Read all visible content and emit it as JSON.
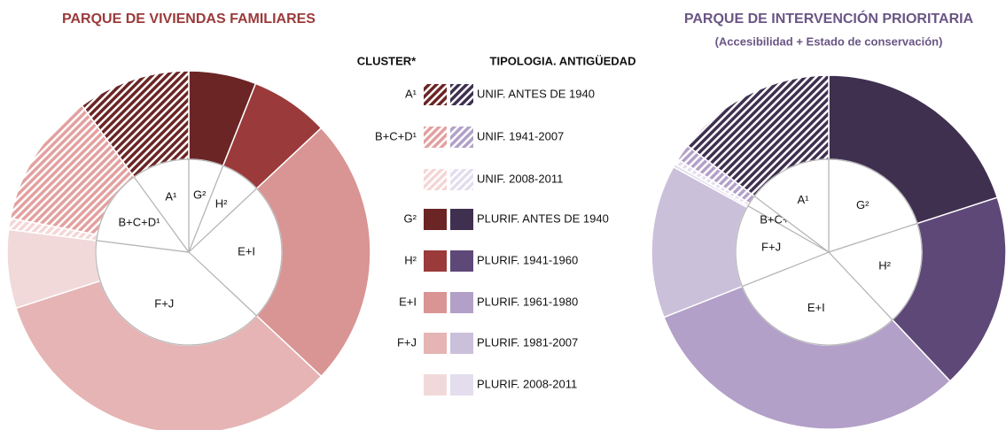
{
  "chart_data": [
    {
      "type": "donut",
      "title": "PARQUE DE VIVIENDAS FAMILIARES",
      "title_color": "#9b3a3a",
      "colors": [
        "#6b2525",
        "#e3a0a0",
        "#f5d5d5",
        "#6b2525",
        "#9b3a3a",
        "#d99494",
        "#e6b4b4",
        "#f2d9d9"
      ],
      "values": [
        10,
        12,
        1,
        6,
        7,
        24,
        33,
        7
      ],
      "clusters": {
        "labels": [
          "G²",
          "H²",
          "E+I",
          "F+J",
          "B+C+D¹",
          "A¹"
        ],
        "values": [
          6,
          7,
          24,
          40,
          13,
          10
        ]
      }
    },
    {
      "type": "donut",
      "title": "PARQUE DE INTERVENCIÓN PRIORITARIA",
      "subtitle": "(Accesibilidad  + Estado de conservación)",
      "title_color": "#6a5585",
      "colors": [
        "#3f3050",
        "#b2a0c8",
        "#e4ddee",
        "#3f3050",
        "#5e4878",
        "#b2a0c8",
        "#cbc0da",
        "#e4ddee"
      ],
      "values": [
        14.7,
        1.5,
        0.5,
        20,
        18,
        31,
        14,
        0.3
      ],
      "clusters": {
        "labels": [
          "G²",
          "H²",
          "E+I",
          "F+J",
          "B+C+D¹",
          "A¹"
        ],
        "values": [
          20,
          18,
          31,
          14.3,
          2,
          14.7
        ]
      }
    }
  ],
  "legend": {
    "cluster_header": "CLUSTER*",
    "typology_header": "TIPOLOGIA.  ANTIGÜEDAD",
    "clusters": [
      "A¹",
      "B+C+D¹",
      null,
      "G²",
      "H²",
      "E+I",
      "F+J",
      null
    ],
    "typologies": [
      "UNIF. ANTES DE 1940",
      "UNIF. 1941-2007",
      "UNIF. 2008-2011",
      "PLURIF. ANTES  DE 1940",
      "PLURIF. 1941-1960",
      "PLURIF. 1961-1980",
      "PLURIF. 1981-2007",
      "PLURIF. 2008-2011"
    ],
    "patterns": [
      "hatch",
      "hatch",
      "hatch",
      "solid",
      "solid",
      "solid",
      "solid",
      "solid"
    ]
  }
}
